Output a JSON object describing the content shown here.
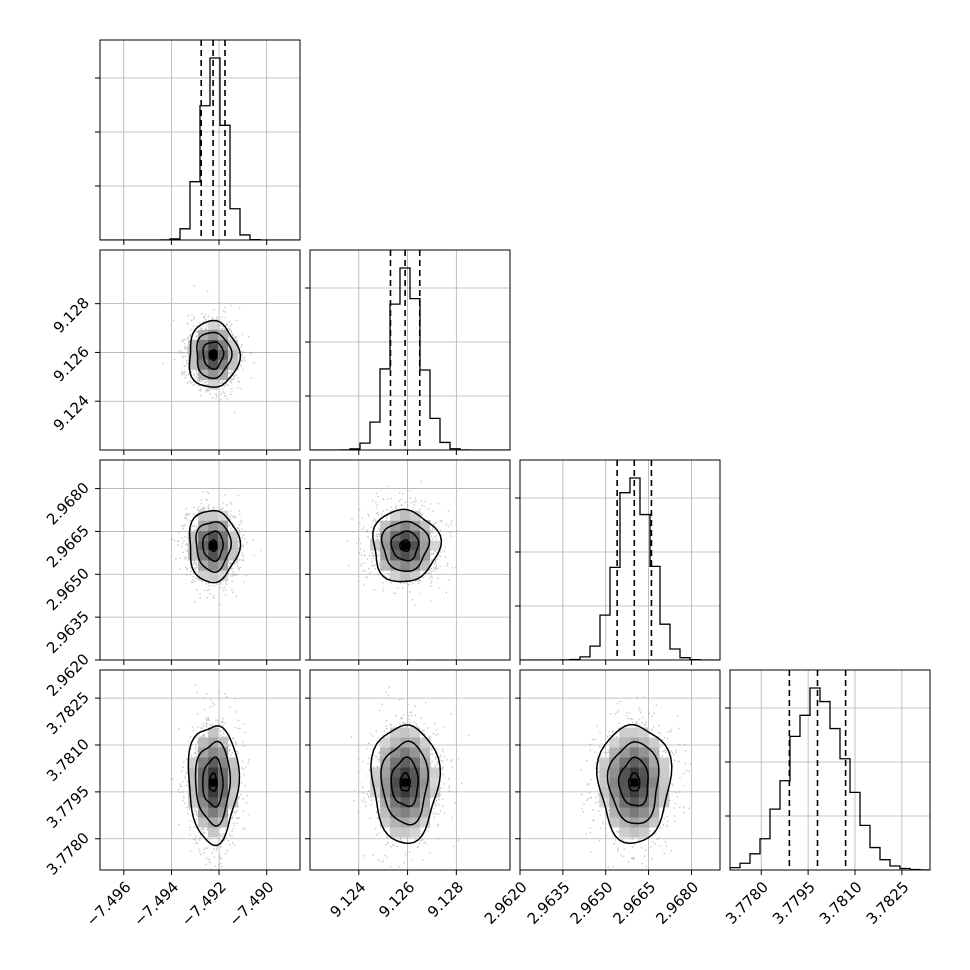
{
  "chart_data": {
    "type": "corner",
    "title": "",
    "grid": true,
    "parameters": [
      {
        "name": "",
        "range": [
          -7.497,
          -7.4886
        ],
        "ticks": [
          -7.496,
          -7.494,
          -7.492,
          -7.49
        ],
        "tick_labels": [
          "−7.496",
          "−7.494",
          "−7.492",
          "−7.490"
        ],
        "quantiles": [
          -7.49275,
          -7.49225,
          -7.49175
        ],
        "mean": -7.49225,
        "sd": 0.0005
      },
      {
        "name": "",
        "range": [
          9.122,
          9.1302
        ],
        "ticks": [
          9.124,
          9.126,
          9.128
        ],
        "tick_labels": [
          "9.124",
          "9.126",
          "9.128"
        ],
        "quantiles": [
          9.1253,
          9.1259,
          9.1265
        ],
        "mean": 9.1259,
        "sd": 0.00065
      },
      {
        "name": "",
        "range": [
          2.962,
          2.969
        ],
        "ticks": [
          2.962,
          2.9635,
          2.965,
          2.9665,
          2.968
        ],
        "tick_labels": [
          "2.9620",
          "2.9635",
          "2.9650",
          "2.9665",
          "2.9680"
        ],
        "quantiles": [
          2.9654,
          2.966,
          2.9666
        ],
        "mean": 2.966,
        "sd": 0.0006
      },
      {
        "name": "",
        "range": [
          3.777,
          3.7834
        ],
        "ticks": [
          3.778,
          3.7795,
          3.781,
          3.7825
        ],
        "tick_labels": [
          "3.7780",
          "3.7795",
          "3.7810",
          "3.7825"
        ],
        "quantiles": [
          3.7789,
          3.7798,
          3.7807
        ],
        "mean": 3.7798,
        "sd": 0.0009
      }
    ],
    "histogram_bins": 20,
    "contour_levels": 4,
    "colors": {
      "line": "#000000",
      "grid": "#b0b0b0",
      "points": "#9a9a9a",
      "frame": "#000000"
    }
  }
}
